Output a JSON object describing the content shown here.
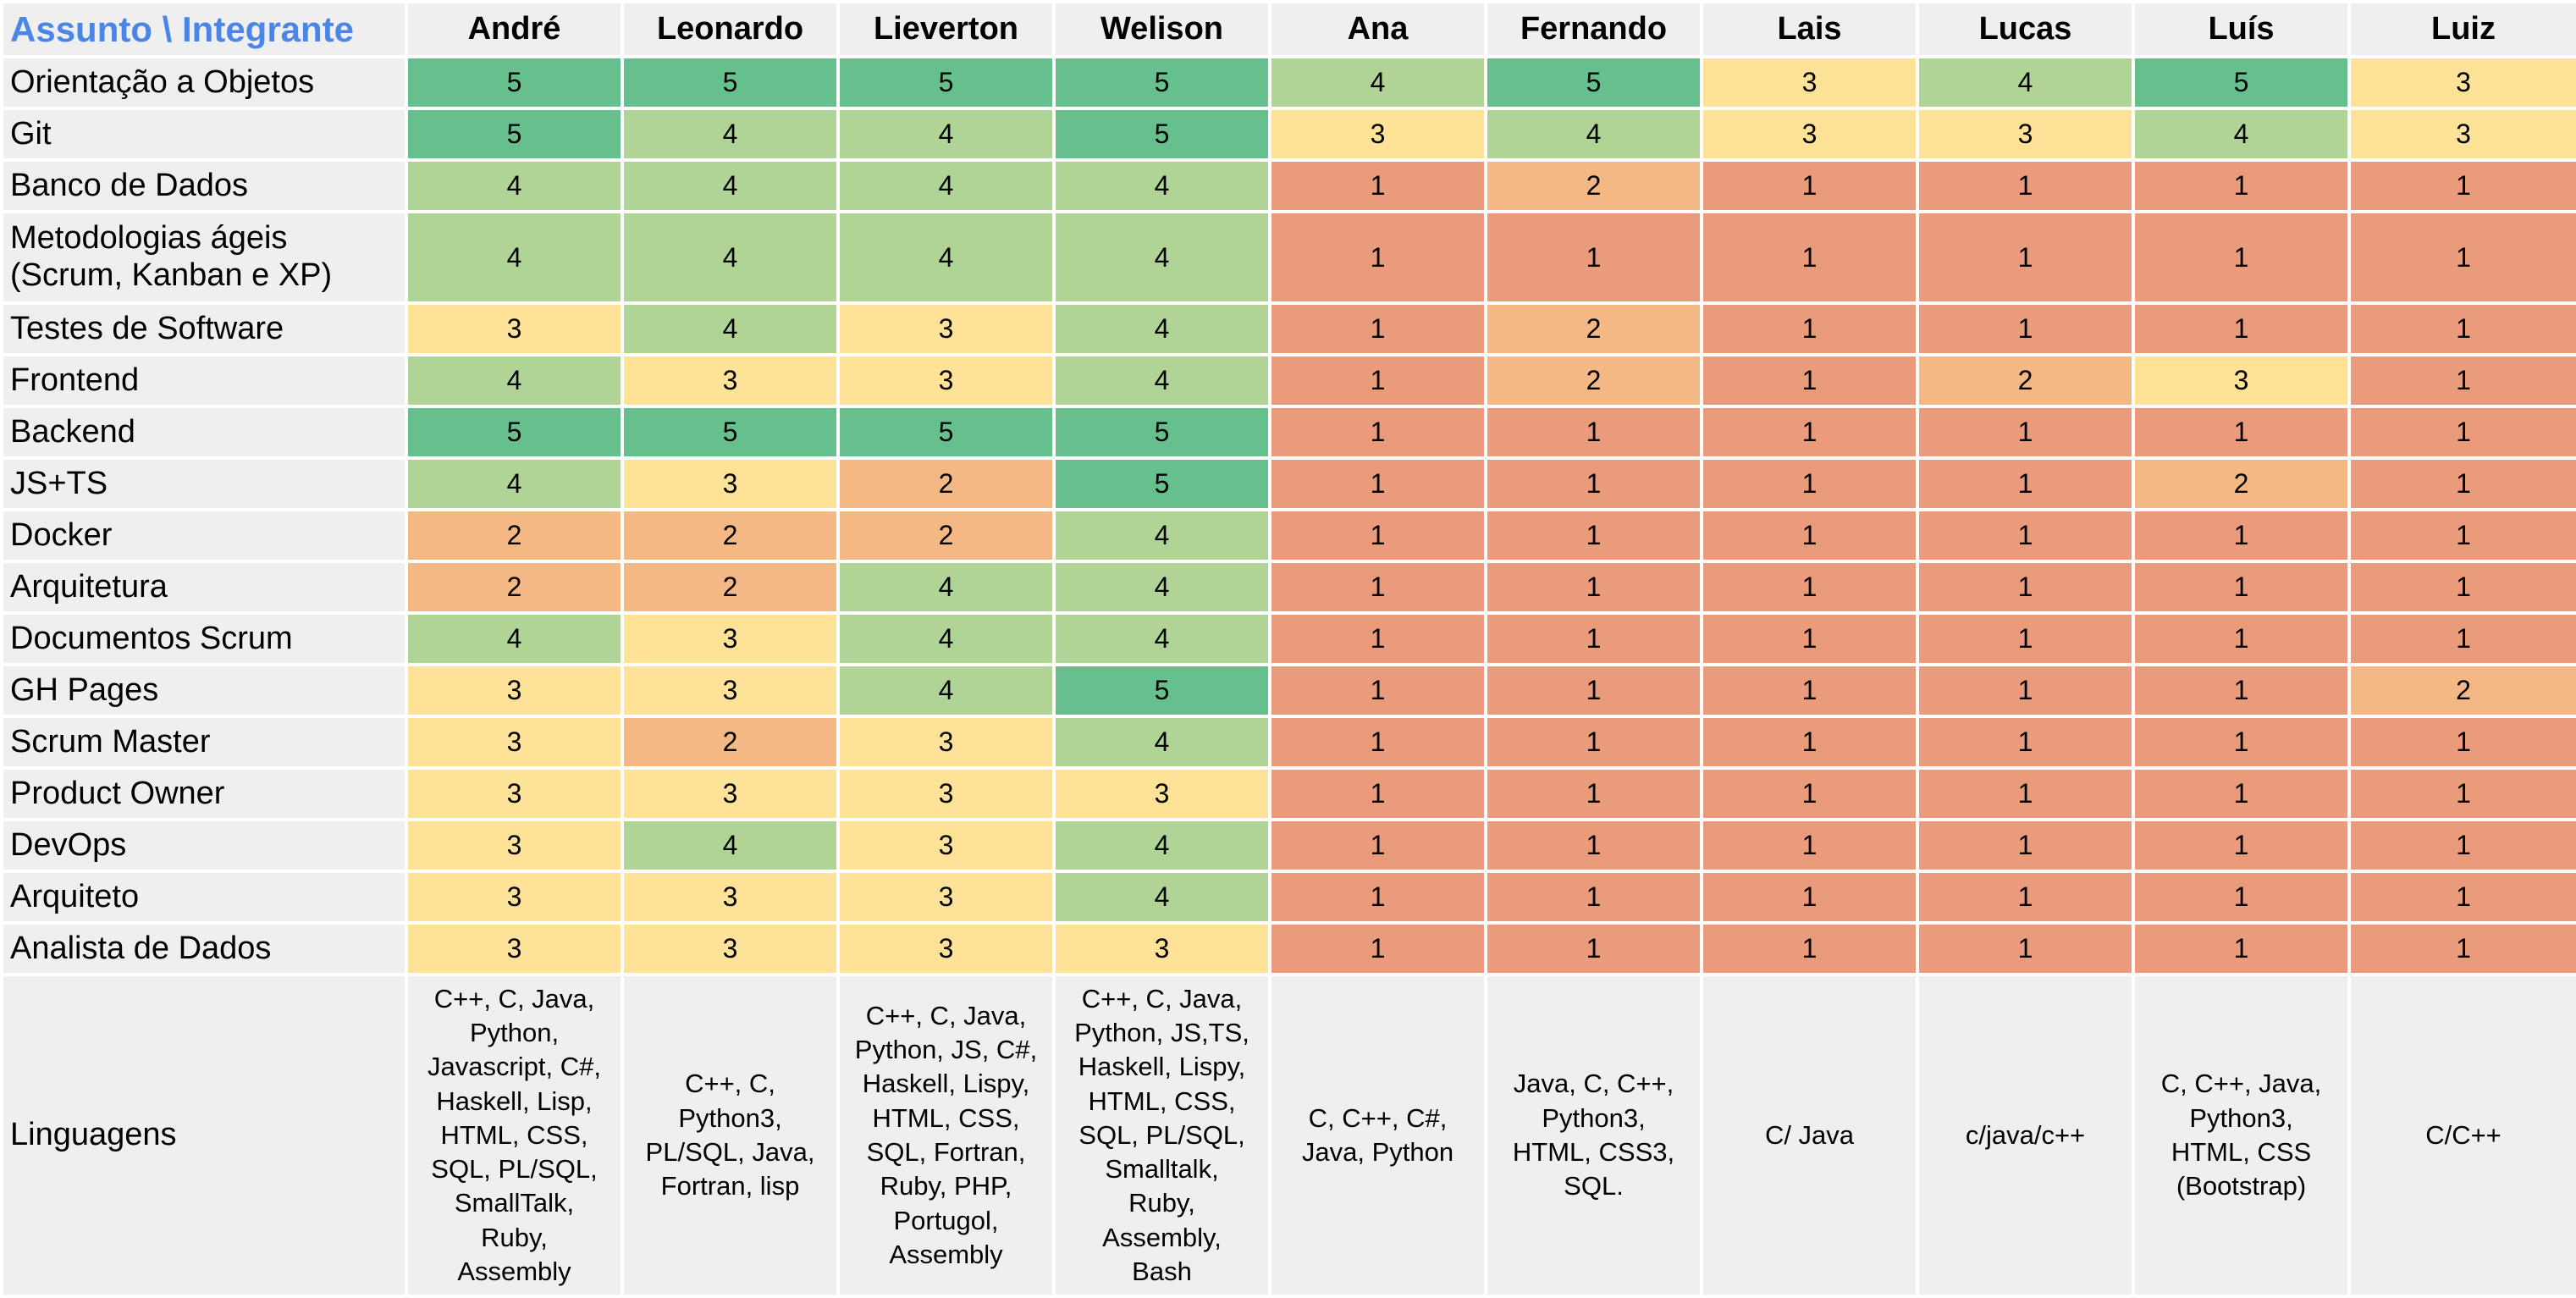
{
  "header": {
    "corner": "Assunto \\ Integrante",
    "members": [
      "André",
      "Leonardo",
      "Lieverton",
      "Welison",
      "Ana",
      "Fernando",
      "Lais",
      "Lucas",
      "Luís",
      "Luiz"
    ]
  },
  "rows": [
    {
      "subject": "Orientação a Objetos",
      "scores": [
        "5",
        "5",
        "5",
        "5",
        "4",
        "5",
        "3",
        "4",
        "5",
        "3"
      ]
    },
    {
      "subject": "Git",
      "scores": [
        "5",
        "4",
        "4",
        "5",
        "3",
        "4",
        "3",
        "3",
        "4",
        "3"
      ]
    },
    {
      "subject": "Banco de Dados",
      "scores": [
        "4",
        "4",
        "4",
        "4",
        "1",
        "2",
        "1",
        "1",
        "1",
        "1"
      ]
    },
    {
      "subject": "Metodologias ágeis\n(Scrum, Kanban e XP)",
      "scores": [
        "4",
        "4",
        "4",
        "4",
        "1",
        "1",
        "1",
        "1",
        "1",
        "1"
      ]
    },
    {
      "subject": "Testes de Software",
      "scores": [
        "3",
        "4",
        "3",
        "4",
        "1",
        "2",
        "1",
        "1",
        "1",
        "1"
      ]
    },
    {
      "subject": "Frontend",
      "scores": [
        "4",
        "3",
        "3",
        "4",
        "1",
        "2",
        "1",
        "2",
        "3",
        "1"
      ]
    },
    {
      "subject": "Backend",
      "scores": [
        "5",
        "5",
        "5",
        "5",
        "1",
        "1",
        "1",
        "1",
        "1",
        "1"
      ]
    },
    {
      "subject": "JS+TS",
      "scores": [
        "4",
        "3",
        "2",
        "5",
        "1",
        "1",
        "1",
        "1",
        "2",
        "1"
      ]
    },
    {
      "subject": "Docker",
      "scores": [
        "2",
        "2",
        "2",
        "4",
        "1",
        "1",
        "1",
        "1",
        "1",
        "1"
      ]
    },
    {
      "subject": "Arquitetura",
      "scores": [
        "2",
        "2",
        "4",
        "4",
        "1",
        "1",
        "1",
        "1",
        "1",
        "1"
      ]
    },
    {
      "subject": "Documentos Scrum",
      "scores": [
        "4",
        "3",
        "4",
        "4",
        "1",
        "1",
        "1",
        "1",
        "1",
        "1"
      ]
    },
    {
      "subject": "GH Pages",
      "scores": [
        "3",
        "3",
        "4",
        "5",
        "1",
        "1",
        "1",
        "1",
        "1",
        "2"
      ]
    },
    {
      "subject": "Scrum Master",
      "scores": [
        "3",
        "2",
        "3",
        "4",
        "1",
        "1",
        "1",
        "1",
        "1",
        "1"
      ]
    },
    {
      "subject": "Product Owner",
      "scores": [
        "3",
        "3",
        "3",
        "3",
        "1",
        "1",
        "1",
        "1",
        "1",
        "1"
      ]
    },
    {
      "subject": "DevOps",
      "scores": [
        "3",
        "4",
        "3",
        "4",
        "1",
        "1",
        "1",
        "1",
        "1",
        "1"
      ]
    },
    {
      "subject": "Arquiteto",
      "scores": [
        "3",
        "3",
        "3",
        "4",
        "1",
        "1",
        "1",
        "1",
        "1",
        "1"
      ]
    },
    {
      "subject": "Analista de Dados",
      "scores": [
        "3",
        "3",
        "3",
        "3",
        "1",
        "1",
        "1",
        "1",
        "1",
        "1"
      ]
    }
  ],
  "languages": {
    "label": "Linguagens",
    "values": [
      "C++, C, Java,\nPython,\nJavascript, C#,\nHaskell, Lisp,\nHTML, CSS,\nSQL, PL/SQL,\nSmallTalk,\nRuby,\nAssembly",
      "C++, C,\nPython3,\nPL/SQL, Java,\nFortran, lisp",
      "C++, C, Java,\nPython, JS, C#,\nHaskell, Lispy,\nHTML, CSS,\nSQL, Fortran,\nRuby, PHP,\nPortugol,\nAssembly",
      "C++, C, Java,\nPython, JS,TS,\nHaskell, Lispy,\nHTML, CSS,\nSQL, PL/SQL,\nSmalltalk,\nRuby,\nAssembly,\nBash",
      "C, C++, C#,\nJava, Python",
      "Java, C, C++,\nPython3,\nHTML, CSS3,\nSQL.",
      "C/ Java",
      "c/java/c++",
      "C, C++, Java,\nPython3,\nHTML, CSS\n(Bootstrap)",
      "C/C++"
    ]
  },
  "colors": {
    "1": "#e99b7c",
    "2": "#f4b885",
    "3": "#fde298",
    "4": "#b0d495",
    "5": "#65c08e",
    "header_accent": "#4a86e8"
  }
}
